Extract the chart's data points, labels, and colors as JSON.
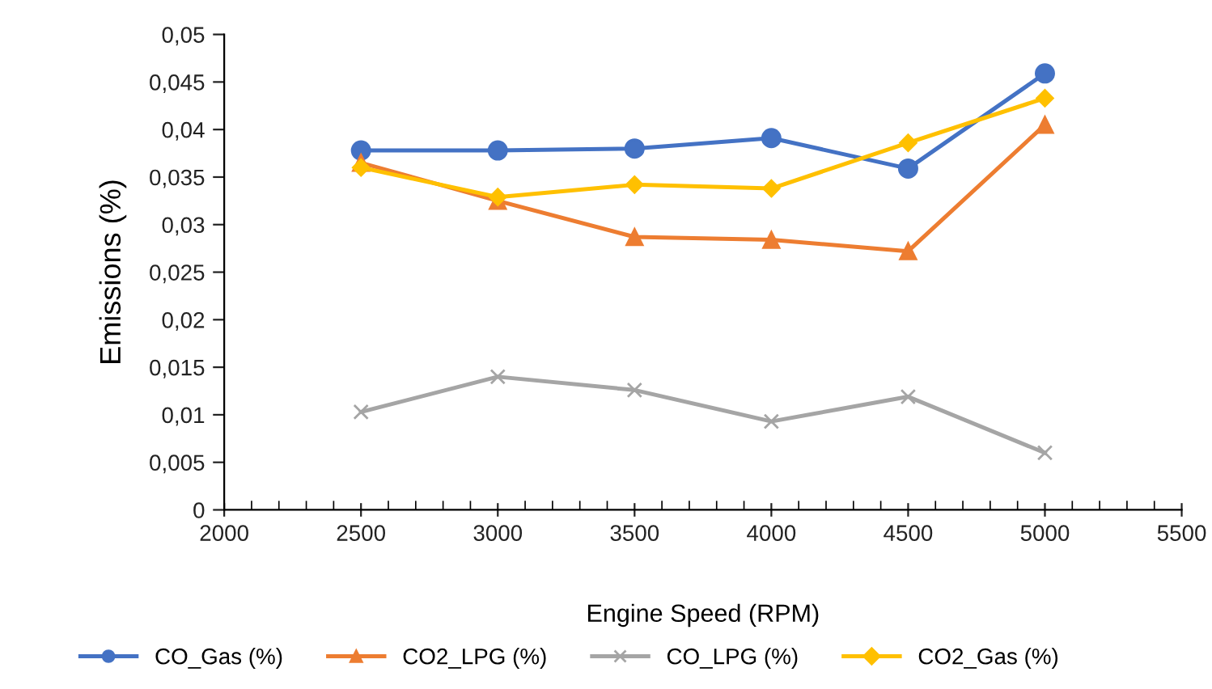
{
  "chart_data": {
    "type": "line",
    "xlabel": "Engine Speed (RPM)",
    "ylabel": "Emissions (%)",
    "x": [
      2500,
      3000,
      3500,
      4000,
      4500,
      5000
    ],
    "series": [
      {
        "name": "CO_Gas (%)",
        "color": "#4472c4",
        "marker": "circle",
        "values": [
          0.0378,
          0.0378,
          0.038,
          0.0391,
          0.0359,
          0.0459
        ]
      },
      {
        "name": "CO2_LPG (%)",
        "color": "#ed7d31",
        "marker": "triangle",
        "values": [
          0.0365,
          0.0325,
          0.0287,
          0.0284,
          0.0272,
          0.0405
        ]
      },
      {
        "name": "CO_LPG (%)",
        "color": "#a5a5a5",
        "marker": "cross",
        "values": [
          0.0103,
          0.014,
          0.0126,
          0.0093,
          0.0119,
          0.006
        ]
      },
      {
        "name": "CO2_Gas (%)",
        "color": "#ffc000",
        "marker": "diamond",
        "values": [
          0.036,
          0.0329,
          0.0342,
          0.0338,
          0.0386,
          0.0433
        ]
      }
    ],
    "xlim": [
      2000,
      5500
    ],
    "xticks": [
      2000,
      2500,
      3000,
      3500,
      4000,
      4500,
      5000,
      5500
    ],
    "ylim": [
      0,
      0.05
    ],
    "yticks": [
      {
        "value": 0,
        "label": "0"
      },
      {
        "value": 0.005,
        "label": "0,005"
      },
      {
        "value": 0.01,
        "label": "0,01"
      },
      {
        "value": 0.015,
        "label": "0,015"
      },
      {
        "value": 0.02,
        "label": "0,02"
      },
      {
        "value": 0.025,
        "label": "0,025"
      },
      {
        "value": 0.03,
        "label": "0,03"
      },
      {
        "value": 0.035,
        "label": "0,035"
      },
      {
        "value": 0.04,
        "label": "0,04"
      },
      {
        "value": 0.045,
        "label": "0,045"
      },
      {
        "value": 0.05,
        "label": "0,05"
      }
    ],
    "grid": false,
    "legend": "bottom",
    "line_style": "solid"
  }
}
